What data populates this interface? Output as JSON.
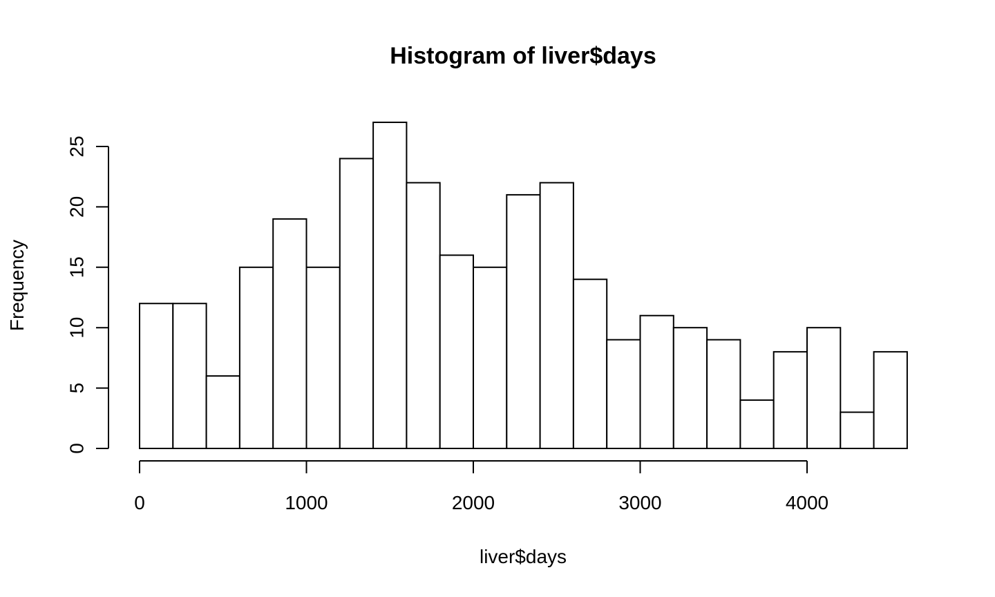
{
  "chart_data": {
    "type": "bar",
    "title": "Histogram of liver$days",
    "xlabel": "liver$days",
    "ylabel": "Frequency",
    "bin_edges": [
      0,
      200,
      400,
      600,
      800,
      1000,
      1200,
      1400,
      1600,
      1800,
      2000,
      2200,
      2400,
      2600,
      2800,
      3000,
      3200,
      3400,
      3600,
      3800,
      4000,
      4200,
      4400,
      4600
    ],
    "values": [
      12,
      12,
      6,
      15,
      19,
      15,
      24,
      27,
      22,
      16,
      15,
      21,
      22,
      14,
      9,
      11,
      10,
      9,
      4,
      8,
      10,
      3,
      8
    ],
    "xlim": [
      0,
      4600
    ],
    "ylim": [
      0,
      27
    ],
    "x_ticks": [
      0,
      1000,
      2000,
      3000,
      4000
    ],
    "x_tick_labels": [
      "0",
      "1000",
      "2000",
      "3000",
      "4000"
    ],
    "y_ticks": [
      0,
      5,
      10,
      15,
      20,
      25
    ],
    "y_tick_labels": [
      "0",
      "5",
      "10",
      "15",
      "20",
      "25"
    ],
    "grid": false,
    "legend": "none"
  }
}
